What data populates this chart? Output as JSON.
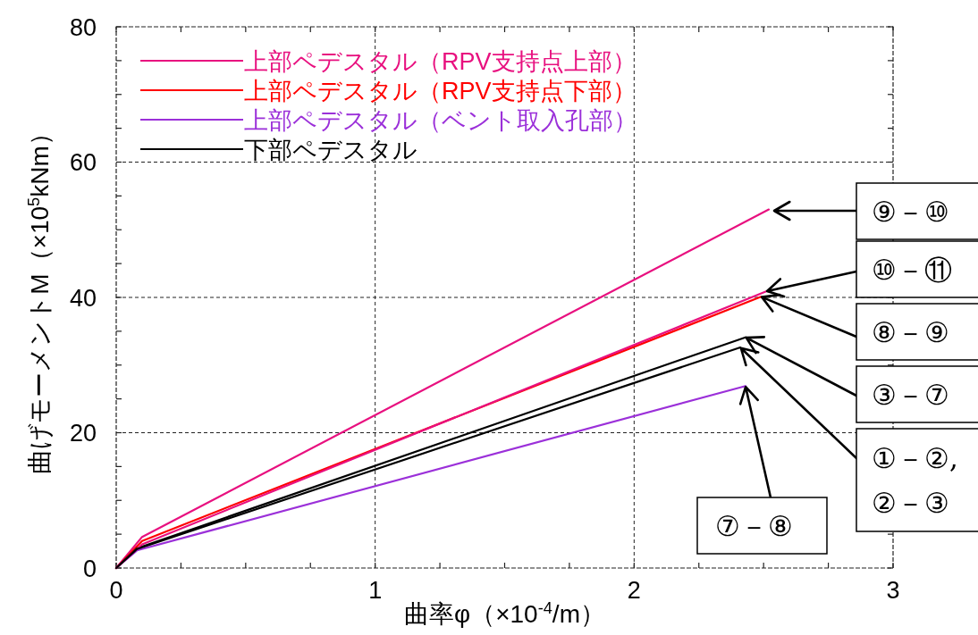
{
  "chart_data": {
    "type": "line",
    "xlabel": "曲率φ（×10$^{-4}$/m）",
    "ylabel": "曲げモーメントM（×10$^{5}$kNm）",
    "xlim": [
      0,
      3
    ],
    "xticks": [
      0,
      {
        "value": 0.25,
        "label": null
      },
      {
        "value": 0.5,
        "label": null
      },
      {
        "value": 0.75,
        "label": null
      },
      1,
      {
        "value": 1.25,
        "label": null
      },
      {
        "value": 1.5,
        "label": null
      },
      {
        "value": 1.75,
        "label": null
      },
      2,
      {
        "value": 2.25,
        "label": null
      },
      {
        "value": 2.5,
        "label": null
      },
      {
        "value": 2.75,
        "label": null
      },
      3
    ],
    "ylim": [
      0,
      80
    ],
    "yticks": [
      0,
      {
        "value": 5,
        "label": null
      },
      {
        "value": 10,
        "label": null
      },
      {
        "value": 15,
        "label": null
      },
      20,
      {
        "value": 25,
        "label": null
      },
      {
        "value": 30,
        "label": null
      },
      {
        "value": 35,
        "label": null
      },
      40,
      {
        "value": 45,
        "label": null
      },
      {
        "value": 50,
        "label": null
      },
      {
        "value": 55,
        "label": null
      },
      60,
      {
        "value": 65,
        "label": null
      },
      {
        "value": 70,
        "label": null
      },
      {
        "value": 75,
        "label": null
      },
      80
    ],
    "grid": true,
    "legend": "top left",
    "line_style": "solid",
    "marker": "none",
    "series": [
      {
        "name": "上部ペデスタル（RPV支持点上部）",
        "color": "#e8107f",
        "x": [
          0,
          0.1,
          2.52
        ],
        "values": [
          0,
          4.6,
          53.0
        ]
      },
      {
        "name": "上部ペデスタル（RPV支持点下部）",
        "color": "#ff0000",
        "x": [
          0,
          0.1,
          2.49
        ],
        "values": [
          0,
          4.0,
          40.1
        ]
      },
      {
        "name": "上部ペデスタル（ベント取入孔部）",
        "color": "#9b30d9",
        "x": [
          0,
          0.08,
          2.43
        ],
        "values": [
          0,
          2.6,
          26.9
        ]
      },
      {
        "name": "下部ペデスタル",
        "color": "#000000",
        "x": [
          0,
          0.08,
          2.43
        ],
        "values": [
          0,
          2.9,
          34.1
        ]
      },
      {
        "color": "#e8107f",
        "x": [
          0,
          0.1,
          2.51
        ],
        "values": [
          0,
          3.5,
          40.9
        ]
      },
      {
        "color": "#000000",
        "x": [
          0,
          0.08,
          2.41
        ],
        "values": [
          0,
          2.8,
          32.6
        ]
      }
    ],
    "annotations": [
      "⑨－⑩",
      {
        "text": "⑩－⑪",
        "x": 2.51,
        "y": 40.9
      },
      {
        "text": "⑧－⑨",
        "x": 2.49,
        "y": 40.1
      },
      {
        "text": "③－⑦",
        "x": 2.43,
        "y": 34.1
      },
      {
        "text": "①－②,\n②－③",
        "x": 2.41,
        "y": 32.6
      },
      {
        "text": "⑦－⑧",
        "x": 2.43,
        "y": 26.9
      }
    ]
  }
}
